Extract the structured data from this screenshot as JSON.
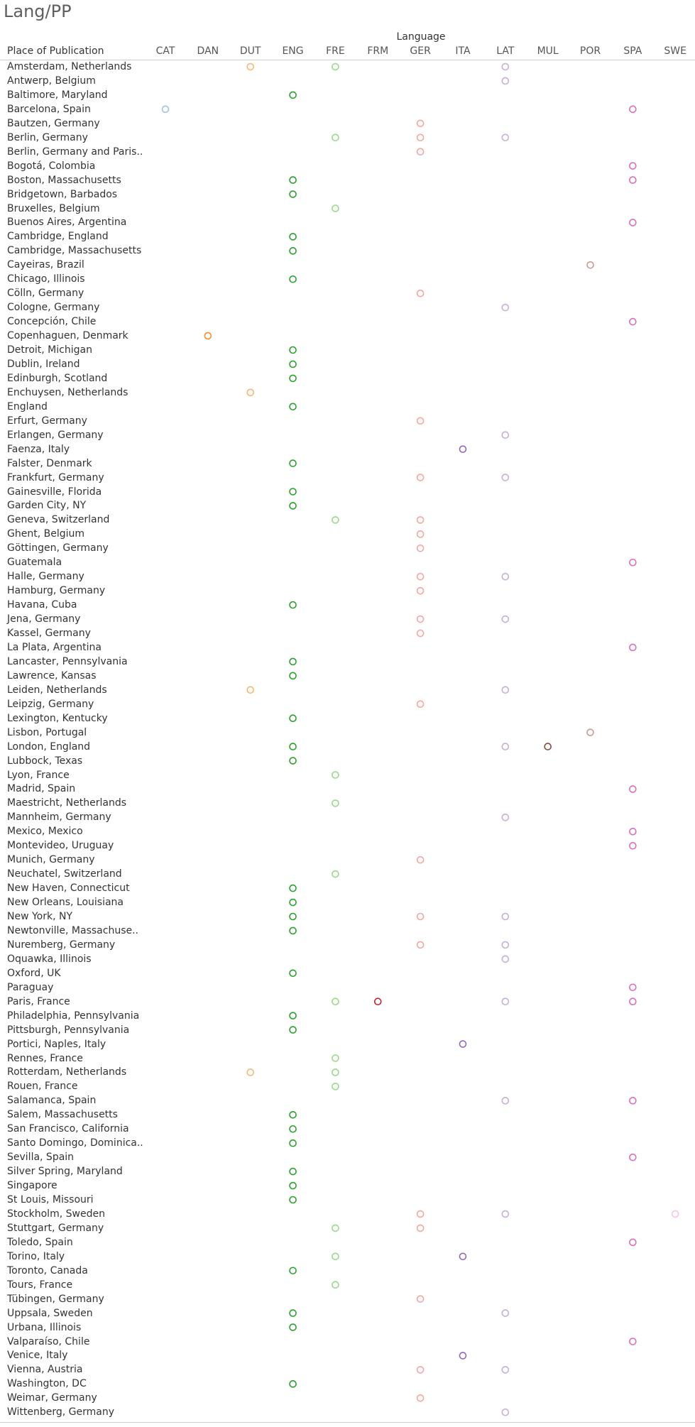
{
  "title": "Lang/PP",
  "column_group_label": "Language",
  "row_header": "Place of Publication",
  "chart_data": {
    "type": "scatter",
    "languages": [
      "CAT",
      "DAN",
      "DUT",
      "ENG",
      "FRE",
      "FRM",
      "GER",
      "ITA",
      "LAT",
      "MUL",
      "POR",
      "SPA",
      "SWE"
    ],
    "colors": {
      "CAT": "#a0c4e0",
      "DAN": "#f28e2b",
      "DUT": "#f7b672",
      "ENG": "#2ca02c",
      "FRE": "#98d98a",
      "FRM": "#c0282d",
      "GER": "#f4a6a0",
      "ITA": "#9467bd",
      "LAT": "#c5b0d5",
      "MUL": "#8c4a3c",
      "POR": "#c49c94",
      "SPA": "#dc6ec0",
      "SWE": "#f7c4e4"
    },
    "rows": [
      {
        "place": "Amsterdam, Netherlands",
        "langs": [
          "DUT",
          "FRE",
          "LAT"
        ]
      },
      {
        "place": "Antwerp, Belgium",
        "langs": [
          "LAT"
        ]
      },
      {
        "place": "Baltimore, Maryland",
        "langs": [
          "ENG"
        ]
      },
      {
        "place": "Barcelona, Spain",
        "langs": [
          "CAT",
          "SPA"
        ]
      },
      {
        "place": "Bautzen, Germany",
        "langs": [
          "GER"
        ]
      },
      {
        "place": "Berlin, Germany",
        "langs": [
          "FRE",
          "GER",
          "LAT"
        ]
      },
      {
        "place": "Berlin, Germany and Paris..",
        "langs": [
          "GER"
        ]
      },
      {
        "place": "Bogotá, Colombia",
        "langs": [
          "SPA"
        ]
      },
      {
        "place": "Boston, Massachusetts",
        "langs": [
          "ENG",
          "SPA"
        ]
      },
      {
        "place": "Bridgetown, Barbados",
        "langs": [
          "ENG"
        ]
      },
      {
        "place": "Bruxelles, Belgium",
        "langs": [
          "FRE"
        ]
      },
      {
        "place": "Buenos Aires, Argentina",
        "langs": [
          "SPA"
        ]
      },
      {
        "place": "Cambridge, England",
        "langs": [
          "ENG"
        ]
      },
      {
        "place": "Cambridge, Massachusetts",
        "langs": [
          "ENG"
        ]
      },
      {
        "place": "Cayeiras, Brazil",
        "langs": [
          "POR"
        ]
      },
      {
        "place": "Chicago, Illinois",
        "langs": [
          "ENG"
        ]
      },
      {
        "place": "Cölln, Germany",
        "langs": [
          "GER"
        ]
      },
      {
        "place": "Cologne, Germany",
        "langs": [
          "LAT"
        ]
      },
      {
        "place": "Concepción, Chile",
        "langs": [
          "SPA"
        ]
      },
      {
        "place": "Copenhaguen, Denmark",
        "langs": [
          "DAN"
        ]
      },
      {
        "place": "Detroit, Michigan",
        "langs": [
          "ENG"
        ]
      },
      {
        "place": "Dublin, Ireland",
        "langs": [
          "ENG"
        ]
      },
      {
        "place": "Edinburgh, Scotland",
        "langs": [
          "ENG"
        ]
      },
      {
        "place": "Enchuysen, Netherlands",
        "langs": [
          "DUT"
        ]
      },
      {
        "place": "England",
        "langs": [
          "ENG"
        ]
      },
      {
        "place": "Erfurt, Germany",
        "langs": [
          "GER"
        ]
      },
      {
        "place": "Erlangen, Germany",
        "langs": [
          "LAT"
        ]
      },
      {
        "place": "Faenza, Italy",
        "langs": [
          "ITA"
        ]
      },
      {
        "place": "Falster, Denmark",
        "langs": [
          "ENG"
        ]
      },
      {
        "place": "Frankfurt, Germany",
        "langs": [
          "GER",
          "LAT"
        ]
      },
      {
        "place": "Gainesville, Florida",
        "langs": [
          "ENG"
        ]
      },
      {
        "place": "Garden City, NY",
        "langs": [
          "ENG"
        ]
      },
      {
        "place": "Geneva, Switzerland",
        "langs": [
          "FRE",
          "GER"
        ]
      },
      {
        "place": "Ghent, Belgium",
        "langs": [
          "GER"
        ]
      },
      {
        "place": "Göttingen, Germany",
        "langs": [
          "GER"
        ]
      },
      {
        "place": "Guatemala",
        "langs": [
          "SPA"
        ]
      },
      {
        "place": "Halle, Germany",
        "langs": [
          "GER",
          "LAT"
        ]
      },
      {
        "place": "Hamburg, Germany",
        "langs": [
          "GER"
        ]
      },
      {
        "place": "Havana, Cuba",
        "langs": [
          "ENG"
        ]
      },
      {
        "place": "Jena, Germany",
        "langs": [
          "GER",
          "LAT"
        ]
      },
      {
        "place": "Kassel, Germany",
        "langs": [
          "GER"
        ]
      },
      {
        "place": "La Plata, Argentina",
        "langs": [
          "SPA"
        ]
      },
      {
        "place": "Lancaster, Pennsylvania",
        "langs": [
          "ENG"
        ]
      },
      {
        "place": "Lawrence, Kansas",
        "langs": [
          "ENG"
        ]
      },
      {
        "place": "Leiden, Netherlands",
        "langs": [
          "DUT",
          "LAT"
        ]
      },
      {
        "place": "Leipzig, Germany",
        "langs": [
          "GER"
        ]
      },
      {
        "place": "Lexington, Kentucky",
        "langs": [
          "ENG"
        ]
      },
      {
        "place": "Lisbon, Portugal",
        "langs": [
          "POR"
        ]
      },
      {
        "place": "London, England",
        "langs": [
          "ENG",
          "LAT",
          "MUL"
        ]
      },
      {
        "place": "Lubbock, Texas",
        "langs": [
          "ENG"
        ]
      },
      {
        "place": "Lyon, France",
        "langs": [
          "FRE"
        ]
      },
      {
        "place": "Madrid, Spain",
        "langs": [
          "SPA"
        ]
      },
      {
        "place": "Maestricht, Netherlands",
        "langs": [
          "FRE"
        ]
      },
      {
        "place": "Mannheim, Germany",
        "langs": [
          "LAT"
        ]
      },
      {
        "place": "Mexico, Mexico",
        "langs": [
          "SPA"
        ]
      },
      {
        "place": "Montevideo, Uruguay",
        "langs": [
          "SPA"
        ]
      },
      {
        "place": "Munich, Germany",
        "langs": [
          "GER"
        ]
      },
      {
        "place": "Neuchatel, Switzerland",
        "langs": [
          "FRE"
        ]
      },
      {
        "place": "New Haven, Connecticut",
        "langs": [
          "ENG"
        ]
      },
      {
        "place": "New Orleans, Louisiana",
        "langs": [
          "ENG"
        ]
      },
      {
        "place": "New York, NY",
        "langs": [
          "ENG",
          "GER",
          "LAT"
        ]
      },
      {
        "place": "Newtonville, Massachuse..",
        "langs": [
          "ENG"
        ]
      },
      {
        "place": "Nuremberg, Germany",
        "langs": [
          "GER",
          "LAT"
        ]
      },
      {
        "place": "Oquawka, Illinois",
        "langs": [
          "LAT"
        ]
      },
      {
        "place": "Oxford, UK",
        "langs": [
          "ENG"
        ]
      },
      {
        "place": "Paraguay",
        "langs": [
          "SPA"
        ]
      },
      {
        "place": "Paris, France",
        "langs": [
          "FRE",
          "FRM",
          "LAT",
          "SPA"
        ]
      },
      {
        "place": "Philadelphia, Pennsylvania",
        "langs": [
          "ENG"
        ]
      },
      {
        "place": "Pittsburgh, Pennsylvania",
        "langs": [
          "ENG"
        ]
      },
      {
        "place": "Portici, Naples, Italy",
        "langs": [
          "ITA"
        ]
      },
      {
        "place": "Rennes, France",
        "langs": [
          "FRE"
        ]
      },
      {
        "place": "Rotterdam, Netherlands",
        "langs": [
          "DUT",
          "FRE"
        ]
      },
      {
        "place": "Rouen, France",
        "langs": [
          "FRE"
        ]
      },
      {
        "place": "Salamanca, Spain",
        "langs": [
          "LAT",
          "SPA"
        ]
      },
      {
        "place": "Salem, Massachusetts",
        "langs": [
          "ENG"
        ]
      },
      {
        "place": "San Francisco, California",
        "langs": [
          "ENG"
        ]
      },
      {
        "place": "Santo Domingo, Dominica..",
        "langs": [
          "ENG"
        ]
      },
      {
        "place": "Sevilla, Spain",
        "langs": [
          "SPA"
        ]
      },
      {
        "place": "Silver Spring, Maryland",
        "langs": [
          "ENG"
        ]
      },
      {
        "place": "Singapore",
        "langs": [
          "ENG"
        ]
      },
      {
        "place": "St Louis, Missouri",
        "langs": [
          "ENG"
        ]
      },
      {
        "place": "Stockholm, Sweden",
        "langs": [
          "GER",
          "LAT",
          "SWE"
        ]
      },
      {
        "place": "Stuttgart, Germany",
        "langs": [
          "FRE",
          "GER"
        ]
      },
      {
        "place": "Toledo, Spain",
        "langs": [
          "SPA"
        ]
      },
      {
        "place": "Torino, Italy",
        "langs": [
          "FRE",
          "ITA"
        ]
      },
      {
        "place": "Toronto, Canada",
        "langs": [
          "ENG"
        ]
      },
      {
        "place": "Tours, France",
        "langs": [
          "FRE"
        ]
      },
      {
        "place": "Tübingen, Germany",
        "langs": [
          "GER"
        ]
      },
      {
        "place": "Uppsala, Sweden",
        "langs": [
          "ENG",
          "LAT"
        ]
      },
      {
        "place": "Urbana, Illinois",
        "langs": [
          "ENG"
        ]
      },
      {
        "place": "Valparaíso, Chile",
        "langs": [
          "SPA"
        ]
      },
      {
        "place": "Venice, Italy",
        "langs": [
          "ITA"
        ]
      },
      {
        "place": "Vienna, Austria",
        "langs": [
          "GER",
          "LAT"
        ]
      },
      {
        "place": "Washington, DC",
        "langs": [
          "ENG"
        ]
      },
      {
        "place": "Weimar, Germany",
        "langs": [
          "GER"
        ]
      },
      {
        "place": "Wittenberg, Germany",
        "langs": [
          "LAT"
        ]
      }
    ]
  }
}
